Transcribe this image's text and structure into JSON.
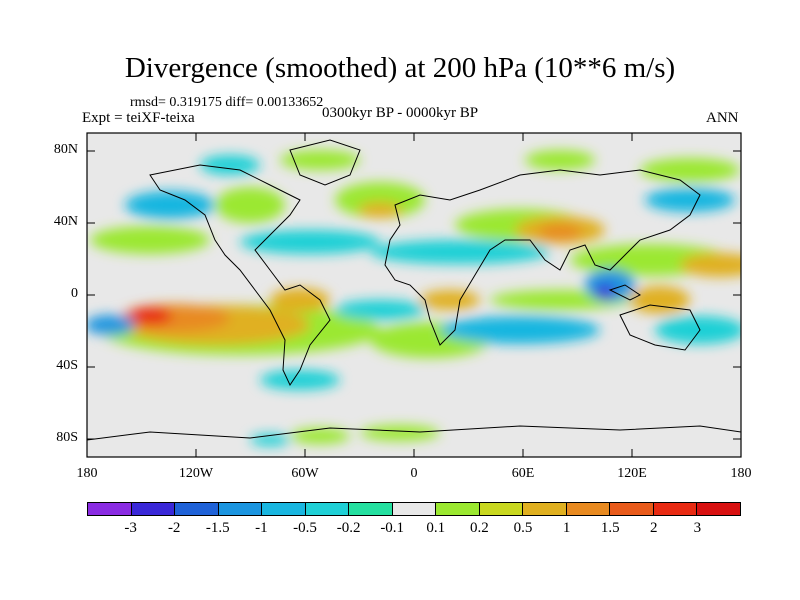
{
  "title": "Divergence (smoothed) at 200 hPa (10**6 m/s)",
  "stats": "rmsd= 0.319175 diff= 0.00133652",
  "experiment": "Expt = teiXF-teixa",
  "period": "0300kyr BP - 0000kyr BP",
  "season": "ANN",
  "map": {
    "lat_labels": [
      "80N",
      "40N",
      "0",
      "40S",
      "80S"
    ],
    "lat_values": [
      80,
      40,
      0,
      -40,
      -80
    ],
    "lon_labels": [
      "180",
      "120W",
      "60W",
      "0",
      "60E",
      "120E",
      "180"
    ],
    "lon_values": [
      -180,
      -120,
      -60,
      0,
      60,
      120,
      180
    ],
    "lat_range": [
      -90,
      90
    ],
    "lon_range": [
      -180,
      180
    ]
  },
  "colorbar": {
    "labels": [
      "-3",
      "-2",
      "-1.5",
      "-1",
      "-0.5",
      "-0.2",
      "-0.1",
      "0.1",
      "0.2",
      "0.5",
      "1",
      "1.5",
      "2",
      "3"
    ],
    "colors": [
      "#8a2be2",
      "#3a28d8",
      "#1f62d8",
      "#1b95e0",
      "#19b6e0",
      "#1fd0d6",
      "#25e0a0",
      "#e8e8e8",
      "#9be830",
      "#c9d820",
      "#e0b020",
      "#e88a20",
      "#e85a1a",
      "#e82a12",
      "#d81010"
    ]
  },
  "colors": {
    "land_outline": "#000000",
    "background": "#e8e8e8"
  }
}
